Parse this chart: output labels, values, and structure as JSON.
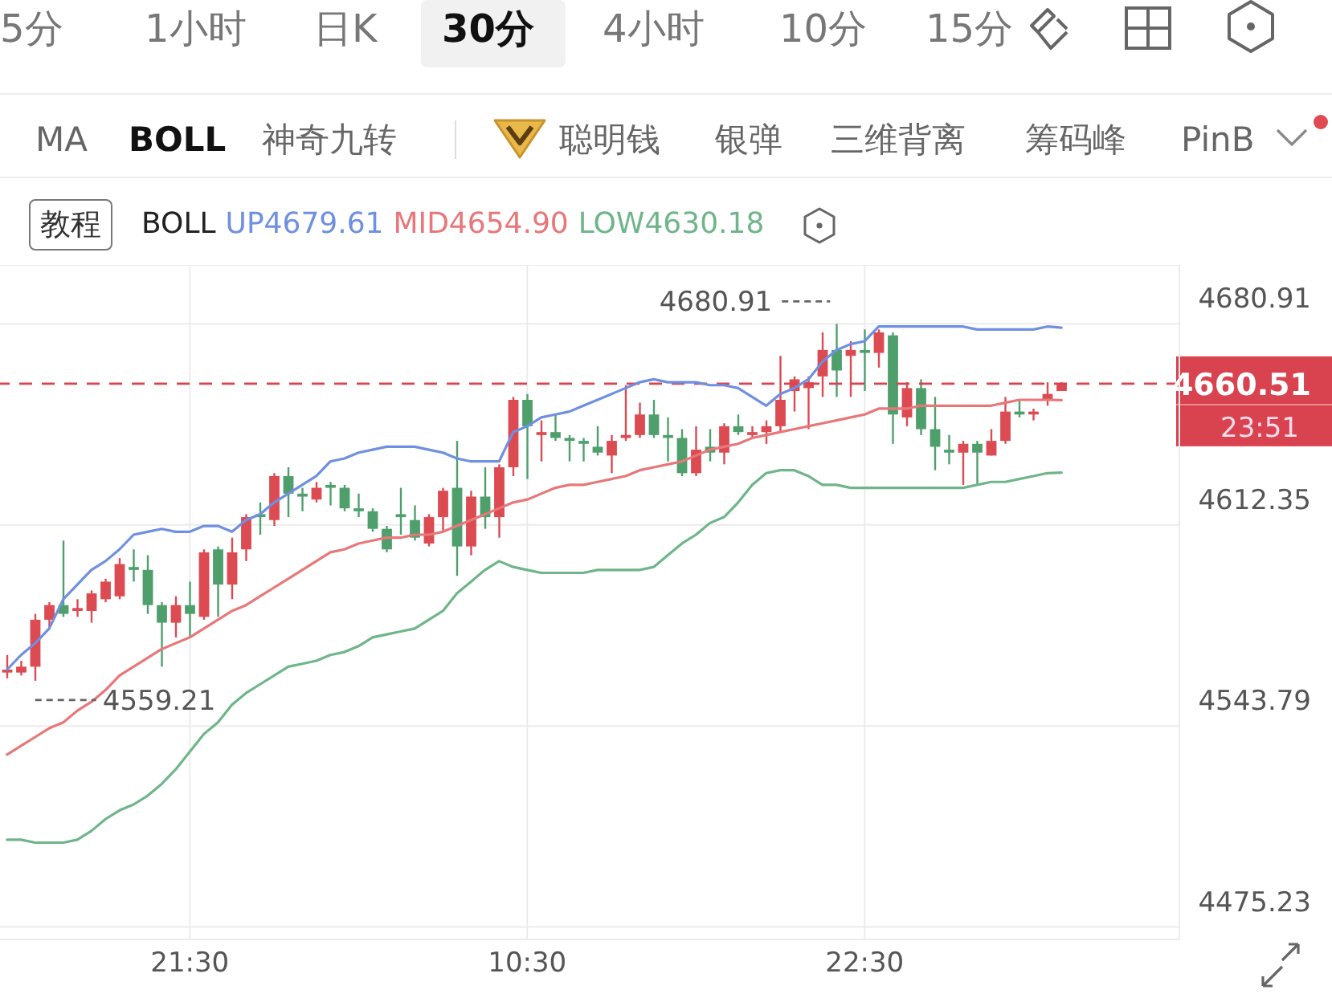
{
  "chart_data": {
    "type": "candlestick",
    "categories": [
      null,
      null,
      null,
      null,
      null,
      null,
      null,
      null,
      null,
      null,
      null,
      null,
      null,
      "21:30",
      null,
      null,
      null,
      null,
      null,
      null,
      null,
      null,
      null,
      null,
      null,
      null,
      null,
      null,
      null,
      null,
      null,
      null,
      null,
      null,
      null,
      null,
      null,
      "10:30",
      null,
      null,
      null,
      null,
      null,
      null,
      null,
      null,
      null,
      null,
      null,
      null,
      null,
      null,
      null,
      null,
      null,
      null,
      null,
      null,
      null,
      null,
      null,
      "22:30",
      null,
      null,
      null,
      null,
      null,
      null,
      null,
      null,
      null,
      null,
      null,
      null,
      null,
      null
    ],
    "ohlc": [
      [
        4562,
        4568,
        4560,
        4563
      ],
      [
        4562,
        4566,
        4561,
        4564
      ],
      [
        4564,
        4582,
        4559.21,
        4580
      ],
      [
        4580,
        4586,
        4577,
        4585
      ],
      [
        4585,
        4607,
        4581,
        4582
      ],
      [
        4583,
        4587,
        4581,
        4584
      ],
      [
        4583,
        4590,
        4579,
        4589
      ],
      [
        4587,
        4594,
        4586,
        4593
      ],
      [
        4588,
        4601,
        4587,
        4599
      ],
      [
        4598,
        4604,
        4593,
        4597
      ],
      [
        4597,
        4602,
        4582,
        4585
      ],
      [
        4585,
        4586,
        4564,
        4579
      ],
      [
        4579,
        4588,
        4574,
        4585
      ],
      [
        4585,
        4593,
        4574,
        4582
      ],
      [
        4581,
        4604,
        4580,
        4603
      ],
      [
        4604,
        4605,
        4581,
        4592
      ],
      [
        4592,
        4608,
        4587,
        4603
      ],
      [
        4604,
        4616,
        4600,
        4615
      ],
      [
        4616,
        4620,
        4609,
        4615
      ],
      [
        4614,
        4630,
        4612,
        4629
      ],
      [
        4629,
        4632,
        4615,
        4623
      ],
      [
        4623,
        4625,
        4617,
        4622
      ],
      [
        4621,
        4627,
        4620,
        4625
      ],
      [
        4626,
        4627,
        4619,
        4625
      ],
      [
        4625,
        4626,
        4617,
        4618
      ],
      [
        4618,
        4623,
        4615,
        4617
      ],
      [
        4617,
        4618,
        4610,
        4611
      ],
      [
        4611,
        4612,
        4603,
        4604
      ],
      [
        4616,
        4625,
        4609,
        4615
      ],
      [
        4614,
        4619,
        4607,
        4608
      ],
      [
        4606,
        4616,
        4605,
        4615
      ],
      [
        4615,
        4625,
        4610,
        4624
      ],
      [
        4625,
        4641,
        4595,
        4605
      ],
      [
        4605,
        4624,
        4602,
        4622
      ],
      [
        4622,
        4632,
        4611,
        4615
      ],
      [
        4615,
        4633,
        4608,
        4632
      ],
      [
        4632,
        4656,
        4629,
        4655
      ],
      [
        4655,
        4657,
        4628,
        4646
      ],
      [
        4643,
        4648,
        4634,
        4644
      ],
      [
        4644,
        4650,
        4641,
        4642
      ],
      [
        4642,
        4643,
        4634,
        4641
      ],
      [
        4641,
        4642,
        4634,
        4640
      ],
      [
        4639,
        4646,
        4636,
        4637
      ],
      [
        4636,
        4643,
        4630,
        4641
      ],
      [
        4642,
        4660,
        4641,
        4643
      ],
      [
        4643,
        4654,
        4642,
        4650
      ],
      [
        4650,
        4655,
        4642,
        4643
      ],
      [
        4643,
        4649,
        4634,
        4642
      ],
      [
        4642,
        4645,
        4629,
        4630
      ],
      [
        4630,
        4646,
        4629,
        4638
      ],
      [
        4639,
        4645,
        4634,
        4637
      ],
      [
        4637,
        4647,
        4633,
        4646
      ],
      [
        4646,
        4650,
        4643,
        4644
      ],
      [
        4643,
        4646,
        4642,
        4644
      ],
      [
        4644,
        4648,
        4640,
        4646
      ],
      [
        4646,
        4670,
        4644,
        4655
      ],
      [
        4658,
        4663,
        4651,
        4662
      ],
      [
        4659,
        4663,
        4645,
        4661
      ],
      [
        4663,
        4678,
        4656,
        4672
      ],
      [
        4672,
        4680.91,
        4656,
        4665
      ],
      [
        4670,
        4675,
        4656,
        4672
      ],
      [
        4672,
        4679,
        4658,
        4671
      ],
      [
        4671,
        4679,
        4666,
        4678
      ],
      [
        4677,
        4678,
        4640,
        4650
      ],
      [
        4649,
        4661,
        4646,
        4659
      ],
      [
        4659,
        4662,
        4643,
        4645
      ],
      [
        4645,
        4656,
        4631,
        4639
      ],
      [
        4638,
        4643,
        4633,
        4637
      ],
      [
        4637,
        4641,
        4626,
        4640
      ],
      [
        4640,
        4641,
        4626,
        4637
      ],
      [
        4636,
        4645,
        4636,
        4641
      ],
      [
        4641,
        4656,
        4640,
        4651
      ],
      [
        4651,
        4655,
        4649,
        4650
      ],
      [
        4650,
        4652,
        4648,
        4651
      ],
      [
        4655,
        4661,
        4653,
        4657
      ],
      [
        4658,
        4661,
        4658,
        4660.51
      ]
    ],
    "series": [
      {
        "type": "line",
        "name": "UP4679.61",
        "color": "#6f8fe0",
        "values": [
          4563,
          4568,
          4572,
          4577,
          4587,
          4592,
          4597,
          4600,
          4604,
          4609,
          4610,
          4611,
          4610,
          4610,
          4612,
          4612,
          4610,
          4614,
          4616,
          4620,
          4623,
          4626,
          4629,
          4634,
          4635,
          4637,
          4638,
          4639,
          4639,
          4639,
          4638,
          4637,
          4635,
          4634,
          4634,
          4634,
          4644,
          4646,
          4649,
          4650,
          4651,
          4653,
          4655,
          4657,
          4659,
          4661,
          4662,
          4661,
          4661,
          4661,
          4660,
          4660,
          4659,
          4656,
          4653,
          4657,
          4659,
          4662,
          4668,
          4672,
          4674,
          4675,
          4680,
          4680,
          4680,
          4680,
          4680,
          4680,
          4680,
          4679,
          4679,
          4679,
          4679,
          4679,
          4680,
          4679.61
        ]
      },
      {
        "type": "line",
        "name": "MID4654.90",
        "color": "#e8777a",
        "values": [
          4534,
          4537,
          4540,
          4543,
          4545,
          4549,
          4552,
          4556,
          4561,
          4564,
          4567,
          4570,
          4572,
          4574,
          4577,
          4580,
          4583,
          4585,
          4588,
          4591,
          4594,
          4597,
          4600,
          4603,
          4604,
          4606,
          4607,
          4608,
          4608,
          4609,
          4609,
          4610,
          4612,
          4614,
          4616,
          4618,
          4620,
          4621,
          4623,
          4625,
          4626,
          4626,
          4627,
          4628,
          4629,
          4631,
          4632,
          4633,
          4634,
          4636,
          4638,
          4639,
          4640,
          4642,
          4643,
          4644,
          4645,
          4646,
          4647,
          4648,
          4649,
          4650,
          4652,
          4652,
          4652,
          4653,
          4653,
          4653,
          4653,
          4653,
          4653,
          4654,
          4655,
          4655,
          4655,
          4654.9
        ]
      },
      {
        "type": "line",
        "name": "LOW4630.18",
        "color": "#6fb58a",
        "values": [
          4505,
          4505,
          4504,
          4504,
          4504,
          4505,
          4508,
          4512,
          4515,
          4517,
          4520,
          4524,
          4529,
          4535,
          4541,
          4545,
          4551,
          4555,
          4558,
          4561,
          4564,
          4565,
          4566,
          4568,
          4569,
          4571,
          4574,
          4575,
          4576,
          4577,
          4580,
          4583,
          4589,
          4593,
          4597,
          4600,
          4598,
          4597,
          4596,
          4596,
          4596,
          4596,
          4597,
          4597,
          4597,
          4597,
          4598,
          4602,
          4606,
          4609,
          4613,
          4615,
          4620,
          4626,
          4630,
          4631,
          4631,
          4629,
          4626,
          4626,
          4625,
          4625,
          4625,
          4625,
          4625,
          4625,
          4625,
          4625,
          4625,
          4626,
          4627,
          4627,
          4628,
          4629,
          4630,
          4630.18
        ]
      }
    ],
    "legend_title": "BOLL",
    "legend": "top",
    "ylim": [
      4471,
      4701
    ],
    "yticks": [
      4680.91,
      4612.35,
      4543.79,
      4475.23
    ],
    "grid": true,
    "ref_lines": [
      {
        "axis": "y",
        "value": 4660.51,
        "label": "4660.51",
        "color": "#d9434f",
        "line_style": "dashed"
      }
    ],
    "annotations": [
      "5分",
      "1小时",
      "日K",
      "30分",
      "4小时",
      "10分",
      "15分",
      "MA",
      "BOLL",
      "神奇九转",
      "聪明钱",
      "银弹",
      "三维背离",
      "筹码峰",
      "PinB",
      "教程",
      "23:51",
      "4680.91",
      "4559.21"
    ]
  }
}
